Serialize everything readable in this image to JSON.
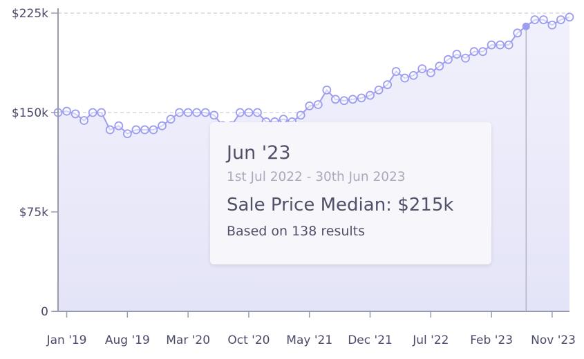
{
  "chart_data": {
    "type": "line",
    "title": "",
    "xlabel": "",
    "ylabel": "",
    "ylim": [
      0,
      225000
    ],
    "y_ticks": [
      {
        "value": 0,
        "label": "0"
      },
      {
        "value": 75000,
        "label": "$75k"
      },
      {
        "value": 150000,
        "label": "$150k"
      },
      {
        "value": 225000,
        "label": "$225k"
      }
    ],
    "x_tick_labels": [
      "Jan '19",
      "Aug '19",
      "Mar '20",
      "Oct '20",
      "May '21",
      "Dec '21",
      "Jul '22",
      "Feb '23",
      "Nov '23"
    ],
    "grid": "horizontal dashed",
    "start_month": "Dec '18",
    "months": [
      "Dec '18",
      "Jan '19",
      "Feb '19",
      "Mar '19",
      "Apr '19",
      "May '19",
      "Jun '19",
      "Jul '19",
      "Aug '19",
      "Sep '19",
      "Oct '19",
      "Nov '19",
      "Dec '19",
      "Jan '20",
      "Feb '20",
      "Mar '20",
      "Apr '20",
      "May '20",
      "Jun '20",
      "Jul '20",
      "Aug '20",
      "Sep '20",
      "Oct '20",
      "Nov '20",
      "Dec '20",
      "Jan '21",
      "Feb '21",
      "Mar '21",
      "Apr '21",
      "May '21",
      "Jun '21",
      "Jul '21",
      "Aug '21",
      "Sep '21",
      "Oct '21",
      "Nov '21",
      "Dec '21",
      "Jan '22",
      "Feb '22",
      "Mar '22",
      "Apr '22",
      "May '22",
      "Jun '22",
      "Jul '22",
      "Aug '22",
      "Sep '22",
      "Oct '22",
      "Nov '22",
      "Dec '22",
      "Jan '23",
      "Feb '23",
      "Mar '23",
      "Apr '23",
      "May '23",
      "Jun '23",
      "Jul '23",
      "Aug '23",
      "Sep '23",
      "Oct '23",
      "Nov '23"
    ],
    "series": [
      {
        "values": [
          150000,
          151000,
          149000,
          144000,
          150000,
          150000,
          137000,
          140000,
          134000,
          137000,
          137000,
          137000,
          140000,
          145000,
          150000,
          150000,
          150000,
          150000,
          148000,
          140000,
          140000,
          150000,
          150000,
          150000,
          143000,
          143000,
          145000,
          143000,
          148000,
          155000,
          156000,
          167000,
          160000,
          159000,
          160000,
          161000,
          163000,
          167000,
          171000,
          181000,
          176000,
          178000,
          183000,
          180000,
          185000,
          190000,
          194000,
          191000,
          196000,
          196000,
          201000,
          201000,
          201000,
          210000,
          215000,
          220000,
          220000,
          216000,
          220000,
          222000
        ],
        "color": "#9c9cf0"
      }
    ],
    "highlight_index": 54,
    "tooltip": {
      "title": "Jun '23",
      "range": "1st Jul 2022 - 30th Jun 2023",
      "value": "Sale Price Median: $215k",
      "count": "Based on 138 results"
    }
  }
}
